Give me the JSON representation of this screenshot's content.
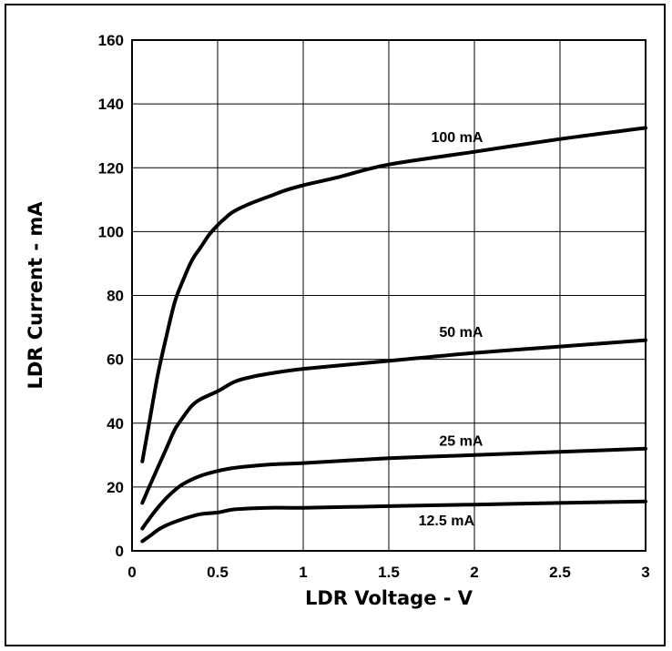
{
  "chart_data": {
    "type": "line",
    "xlabel": "LDR Voltage - V",
    "ylabel": "LDR Current - mA",
    "xlim": [
      0,
      3
    ],
    "ylim": [
      0,
      160
    ],
    "x_ticks": [
      "0",
      "0.5",
      "1",
      "1.5",
      "2",
      "2.5",
      "3"
    ],
    "y_ticks": [
      "0",
      "20",
      "40",
      "60",
      "80",
      "100",
      "120",
      "140",
      "160"
    ],
    "grid": true,
    "series": [
      {
        "name": "100 mA",
        "points": [
          [
            0.06,
            28
          ],
          [
            0.1,
            40
          ],
          [
            0.15,
            55
          ],
          [
            0.2,
            67
          ],
          [
            0.25,
            78
          ],
          [
            0.3,
            85
          ],
          [
            0.35,
            91
          ],
          [
            0.4,
            95
          ],
          [
            0.45,
            99
          ],
          [
            0.5,
            102
          ],
          [
            0.55,
            104.5
          ],
          [
            0.6,
            106.5
          ],
          [
            0.7,
            109
          ],
          [
            0.8,
            111
          ],
          [
            0.9,
            113
          ],
          [
            1.0,
            114.5
          ],
          [
            1.2,
            117
          ],
          [
            1.5,
            121
          ],
          [
            2.0,
            125
          ],
          [
            2.5,
            129
          ],
          [
            3.0,
            132.5
          ]
        ]
      },
      {
        "name": "50 mA",
        "points": [
          [
            0.06,
            15
          ],
          [
            0.1,
            20
          ],
          [
            0.15,
            26
          ],
          [
            0.2,
            32
          ],
          [
            0.25,
            38
          ],
          [
            0.3,
            42
          ],
          [
            0.35,
            45.5
          ],
          [
            0.4,
            47.5
          ],
          [
            0.5,
            50
          ],
          [
            0.6,
            53
          ],
          [
            0.7,
            54.5
          ],
          [
            0.8,
            55.5
          ],
          [
            1.0,
            57
          ],
          [
            1.5,
            59.5
          ],
          [
            2.0,
            62
          ],
          [
            2.5,
            64
          ],
          [
            3.0,
            66
          ]
        ]
      },
      {
        "name": "25 mA",
        "points": [
          [
            0.06,
            7
          ],
          [
            0.1,
            10
          ],
          [
            0.15,
            13.5
          ],
          [
            0.2,
            16.5
          ],
          [
            0.25,
            19
          ],
          [
            0.3,
            21
          ],
          [
            0.4,
            23.5
          ],
          [
            0.5,
            25
          ],
          [
            0.6,
            26
          ],
          [
            0.8,
            27
          ],
          [
            1.0,
            27.5
          ],
          [
            1.5,
            29
          ],
          [
            2.0,
            30
          ],
          [
            2.5,
            31
          ],
          [
            3.0,
            32
          ]
        ]
      },
      {
        "name": "12.5 mA",
        "points": [
          [
            0.06,
            3
          ],
          [
            0.1,
            4.5
          ],
          [
            0.15,
            6.5
          ],
          [
            0.2,
            8
          ],
          [
            0.3,
            10
          ],
          [
            0.4,
            11.5
          ],
          [
            0.5,
            12
          ],
          [
            0.6,
            13
          ],
          [
            0.8,
            13.5
          ],
          [
            1.0,
            13.5
          ],
          [
            1.5,
            14
          ],
          [
            2.0,
            14.5
          ],
          [
            2.5,
            15
          ],
          [
            3.0,
            15.5
          ]
        ]
      }
    ]
  }
}
